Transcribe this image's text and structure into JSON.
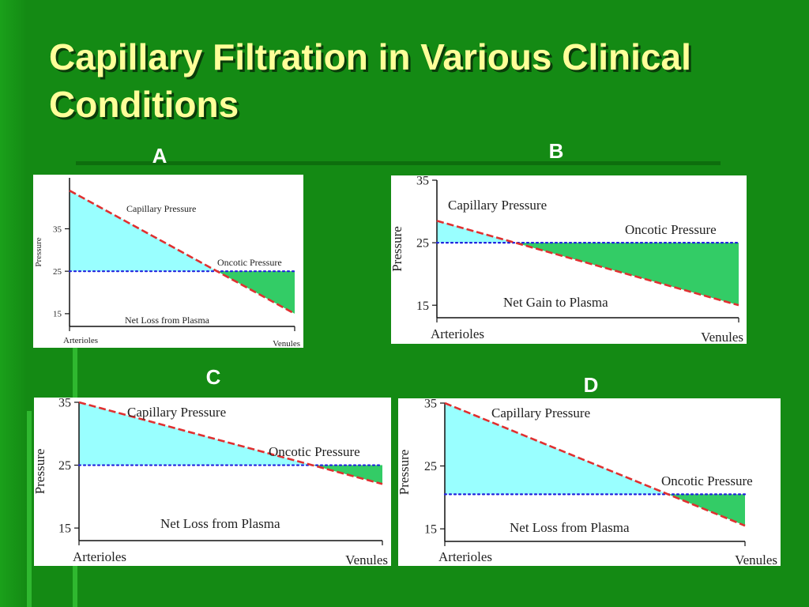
{
  "slide": {
    "title": "Capillary Filtration in Various Clinical Conditions",
    "panel_labels": [
      "A",
      "B",
      "C",
      "D"
    ]
  },
  "colors": {
    "background": "#148a14",
    "title": "#ffff99",
    "capillary_line": "#e03030",
    "oncotic_line": "#2222dd",
    "loss_fill": "#99ffff",
    "gain_fill": "#33cc66"
  },
  "chart_data": [
    {
      "panel": "A",
      "type": "line",
      "title": "",
      "xlabel": "",
      "ylabel": "Pressure",
      "x_ticks": [
        "Arterioles",
        "Venules"
      ],
      "y_ticks": [
        15,
        25,
        35
      ],
      "ylim": [
        12,
        47
      ],
      "series": [
        {
          "name": "Capillary Pressure",
          "x": [
            0,
            1
          ],
          "values": [
            44,
            15
          ]
        },
        {
          "name": "Oncotic Pressure",
          "x": [
            0,
            1
          ],
          "values": [
            25,
            25
          ]
        }
      ],
      "annotations": {
        "capillary": "Capillary Pressure",
        "oncotic": "Oncotic Pressure",
        "net": "Net Loss from Plasma"
      }
    },
    {
      "panel": "B",
      "type": "line",
      "title": "",
      "xlabel": "",
      "ylabel": "Pressure",
      "x_ticks": [
        "Arterioles",
        "Venules"
      ],
      "y_ticks": [
        15,
        25,
        35
      ],
      "ylim": [
        13,
        35
      ],
      "series": [
        {
          "name": "Capillary Pressure",
          "x": [
            0,
            1
          ],
          "values": [
            28.5,
            15
          ]
        },
        {
          "name": "Oncotic Pressure",
          "x": [
            0,
            1
          ],
          "values": [
            25,
            25
          ]
        }
      ],
      "annotations": {
        "capillary": "Capillary Pressure",
        "oncotic": "Oncotic Pressure",
        "net": "Net Gain to Plasma"
      }
    },
    {
      "panel": "C",
      "type": "line",
      "title": "",
      "xlabel": "",
      "ylabel": "Pressure",
      "x_ticks": [
        "Arterioles",
        "Venules"
      ],
      "y_ticks": [
        15,
        25,
        35
      ],
      "ylim": [
        13,
        35
      ],
      "series": [
        {
          "name": "Capillary Pressure",
          "x": [
            0,
            1
          ],
          "values": [
            35,
            22
          ]
        },
        {
          "name": "Oncotic Pressure",
          "x": [
            0,
            1
          ],
          "values": [
            25,
            25
          ]
        }
      ],
      "annotations": {
        "capillary": "Capillary Pressure",
        "oncotic": "Oncotic Pressure",
        "net": "Net Loss from Plasma"
      }
    },
    {
      "panel": "D",
      "type": "line",
      "title": "",
      "xlabel": "",
      "ylabel": "Pressure",
      "x_ticks": [
        "Arterioles",
        "Venules"
      ],
      "y_ticks": [
        15,
        25,
        35
      ],
      "ylim": [
        13,
        35
      ],
      "series": [
        {
          "name": "Capillary Pressure",
          "x": [
            0,
            1
          ],
          "values": [
            35,
            15.5
          ]
        },
        {
          "name": "Oncotic Pressure",
          "x": [
            0,
            1
          ],
          "values": [
            20.5,
            20.5
          ]
        }
      ],
      "annotations": {
        "capillary": "Capillary Pressure",
        "oncotic": "Oncotic Pressure",
        "net": "Net Loss from Plasma"
      }
    }
  ]
}
